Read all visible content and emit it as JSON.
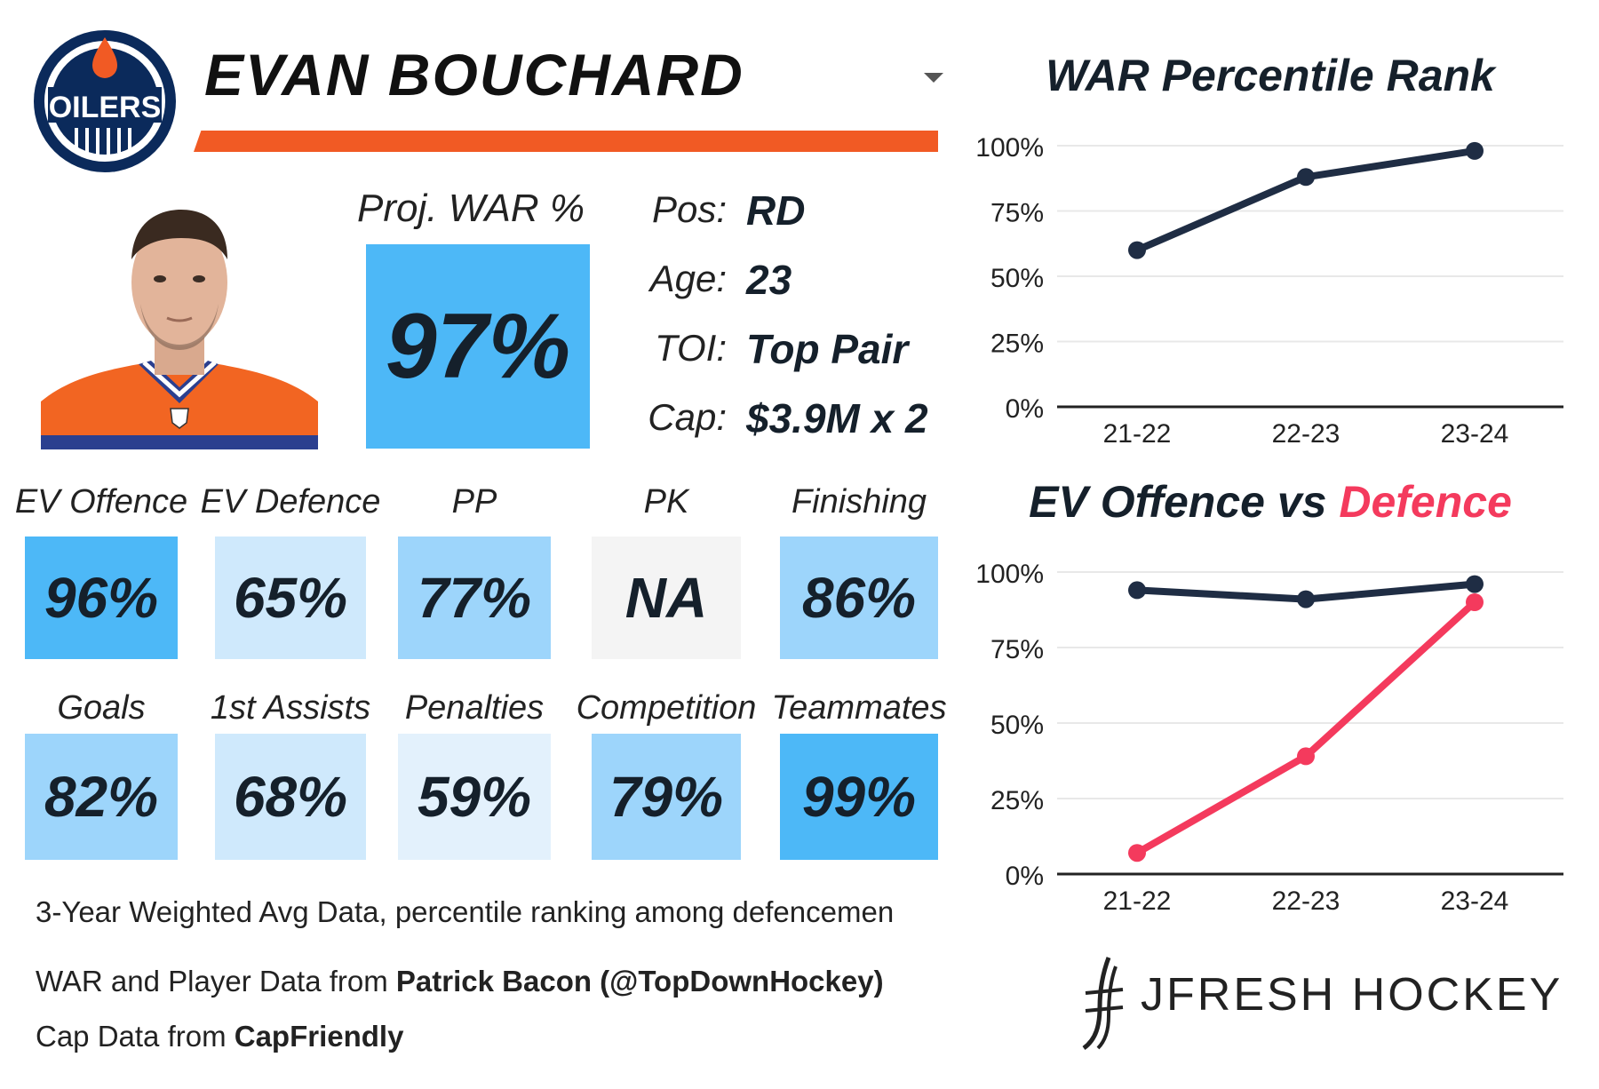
{
  "header": {
    "team_logo_text": "OILERS",
    "player_name": "EVAN BOUCHARD"
  },
  "colors": {
    "accent_orange": "#f15a24",
    "navy": "#1f2d44",
    "defence_pink": "#f43a5d",
    "tile_strong": "#4db8f7",
    "tile_mid": "#9dd5fb",
    "tile_light": "#cfe9fc",
    "tile_pale": "#e3f1fc",
    "tile_na": "#f4f4f4"
  },
  "projection": {
    "label": "Proj. WAR %",
    "value": "97%"
  },
  "info": [
    {
      "label": "Pos:",
      "value": "RD"
    },
    {
      "label": "Age:",
      "value": "23"
    },
    {
      "label": "TOI:",
      "value": "Top Pair"
    },
    {
      "label": "Cap:",
      "value": "$3.9M x 2"
    }
  ],
  "stats_row1": [
    {
      "label": "EV Offence",
      "value": "96%",
      "level": "strong"
    },
    {
      "label": "EV Defence",
      "value": "65%",
      "level": "light"
    },
    {
      "label": "PP",
      "value": "77%",
      "level": "mid"
    },
    {
      "label": "PK",
      "value": "NA",
      "level": "na"
    },
    {
      "label": "Finishing",
      "value": "86%",
      "level": "mid"
    }
  ],
  "stats_row2": [
    {
      "label": "Goals",
      "value": "82%",
      "level": "mid"
    },
    {
      "label": "1st Assists",
      "value": "68%",
      "level": "light"
    },
    {
      "label": "Penalties",
      "value": "59%",
      "level": "pale"
    },
    {
      "label": "Competition",
      "value": "79%",
      "level": "mid"
    },
    {
      "label": "Teammates",
      "value": "99%",
      "level": "strong"
    }
  ],
  "footnotes": {
    "note": "3-Year Weighted Avg Data, percentile ranking among defencemen",
    "war_source_prefix": "WAR and Player Data from ",
    "war_source_name": "Patrick Bacon (@TopDownHockey)",
    "cap_source_prefix": "Cap Data from ",
    "cap_source_name": "CapFriendly"
  },
  "brand": {
    "name": "JFRESH HOCKEY"
  },
  "chart_data": [
    {
      "type": "line",
      "title": "WAR Percentile Rank",
      "categories": [
        "21-22",
        "22-23",
        "23-24"
      ],
      "series": [
        {
          "values": [
            60,
            88,
            98
          ],
          "color": "#1f2d44"
        }
      ],
      "yticks": [
        "0%",
        "25%",
        "50%",
        "75%",
        "100%"
      ],
      "ylim": [
        0,
        100
      ],
      "grid": true
    },
    {
      "type": "line",
      "title_part1": "EV Offence vs ",
      "title_part2": "Defence",
      "categories": [
        "21-22",
        "22-23",
        "23-24"
      ],
      "series": [
        {
          "values": [
            94,
            91,
            96
          ],
          "color": "#1f2d44"
        },
        {
          "values": [
            7,
            39,
            90
          ],
          "color": "#f43a5d"
        }
      ],
      "yticks": [
        "0%",
        "25%",
        "50%",
        "75%",
        "100%"
      ],
      "ylim": [
        0,
        100
      ],
      "grid": true
    }
  ]
}
